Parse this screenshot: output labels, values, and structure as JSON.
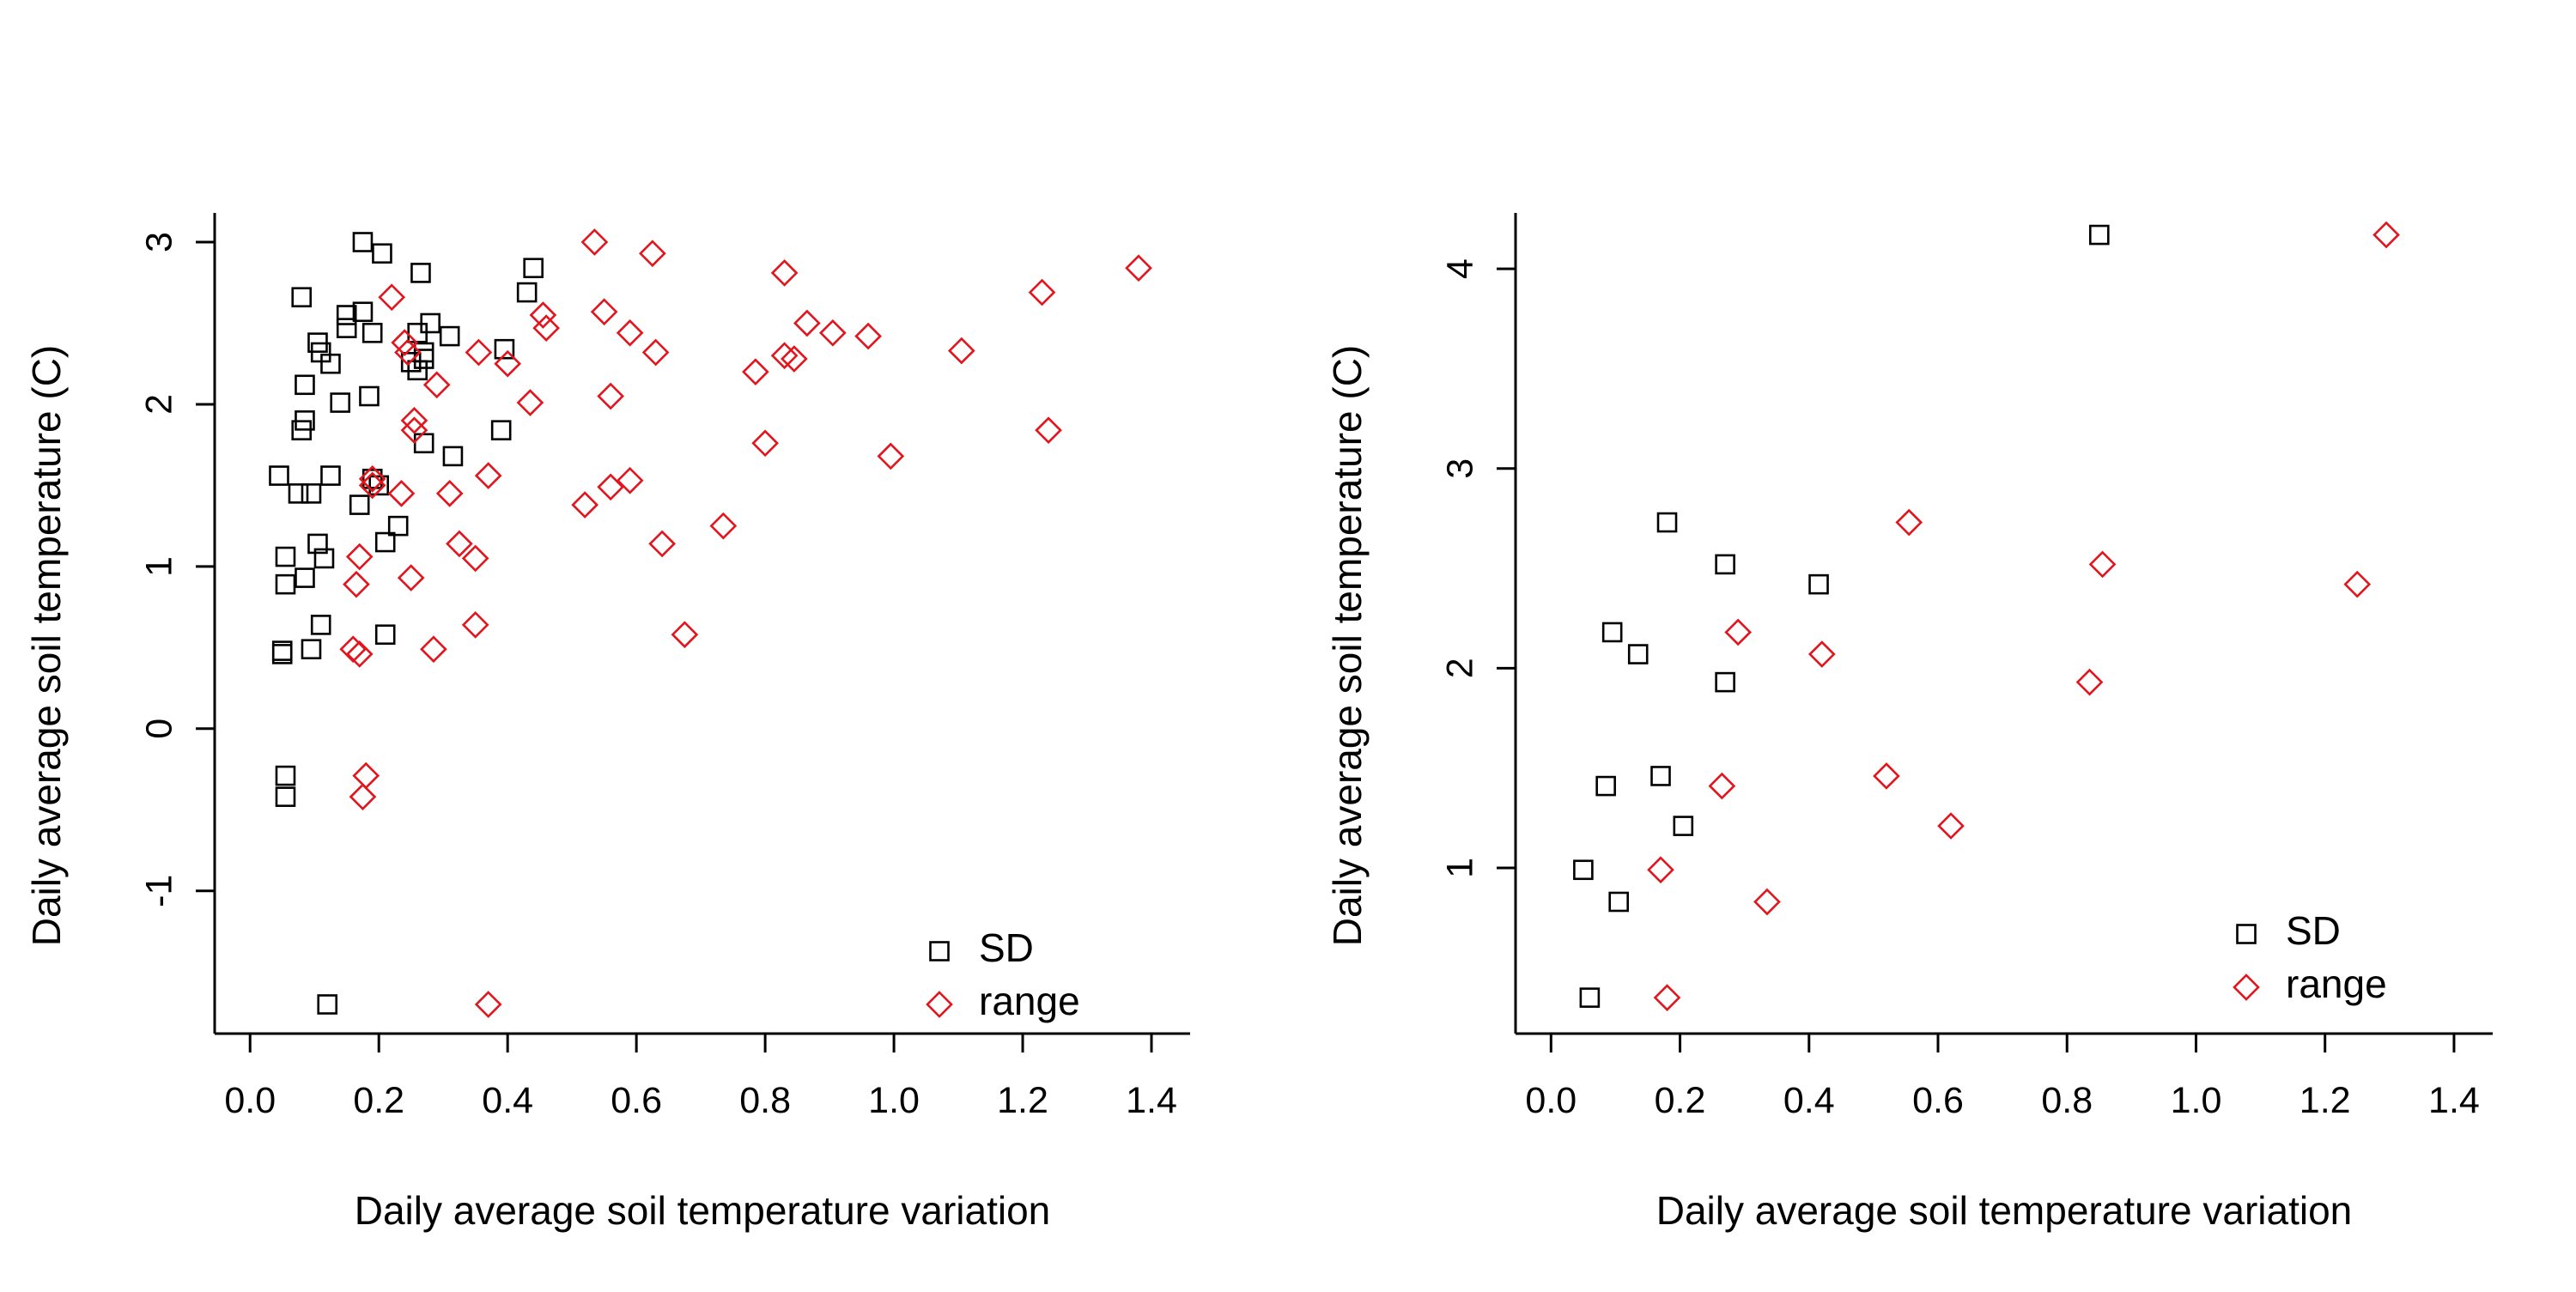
{
  "colors": {
    "sd": "#000000",
    "range": "#e3141c",
    "axis": "#000000"
  },
  "chart_data": [
    {
      "type": "scatter",
      "xlabel": "Daily average soil temperature variation",
      "ylabel": "Daily average soil temperature (C)",
      "xlim": [
        -0.055,
        1.46
      ],
      "ylim": [
        -1.88,
        3.18
      ],
      "xticks": [
        0.0,
        0.2,
        0.4,
        0.6,
        0.8,
        1.0,
        1.2,
        1.4
      ],
      "xtick_labels": [
        "0.0",
        "0.2",
        "0.4",
        "0.6",
        "0.8",
        "1.0",
        "1.2",
        "1.4"
      ],
      "yticks": [
        -1,
        0,
        1,
        2,
        3
      ],
      "ytick_labels": [
        "-1",
        "0",
        "1",
        "2",
        "3"
      ],
      "grid": false,
      "legend": {
        "position": "bottom-right",
        "entries": [
          "SD",
          "range"
        ]
      },
      "series": [
        {
          "name": "SD",
          "marker": "square",
          "x": [
            0.175,
            0.205,
            0.265,
            0.44,
            0.08,
            0.43,
            0.15,
            0.175,
            0.28,
            0.15,
            0.19,
            0.26,
            0.31,
            0.105,
            0.11,
            0.27,
            0.27,
            0.25,
            0.125,
            0.26,
            0.085,
            0.185,
            0.395,
            0.14,
            0.085,
            0.39,
            0.08,
            0.27,
            0.315,
            0.045,
            0.19,
            0.2,
            0.125,
            0.075,
            0.095,
            0.17,
            0.23,
            0.105,
            0.21,
            0.115,
            0.055,
            0.085,
            0.055,
            0.11,
            0.21,
            0.095,
            0.05,
            0.05,
            0.055,
            0.055,
            0.12
          ],
          "y": [
            3.0,
            2.93,
            2.81,
            2.84,
            2.66,
            2.69,
            2.55,
            2.57,
            2.5,
            2.47,
            2.44,
            2.44,
            2.42,
            2.38,
            2.32,
            2.32,
            2.28,
            2.26,
            2.25,
            2.21,
            2.12,
            2.05,
            2.34,
            2.01,
            1.9,
            1.84,
            1.84,
            1.76,
            1.68,
            1.56,
            1.54,
            1.5,
            1.56,
            1.45,
            1.45,
            1.38,
            1.25,
            1.14,
            1.15,
            1.05,
            1.06,
            0.93,
            0.89,
            0.64,
            0.58,
            0.49,
            0.48,
            0.46,
            -0.29,
            -0.42,
            -1.7
          ]
        },
        {
          "name": "range",
          "marker": "diamond",
          "x": [
            0.535,
            0.625,
            0.83,
            1.38,
            0.22,
            1.23,
            0.455,
            0.55,
            0.865,
            0.46,
            0.59,
            0.905,
            0.96,
            0.24,
            0.245,
            0.355,
            0.63,
            0.83,
            0.845,
            1.105,
            0.785,
            0.29,
            0.4,
            0.435,
            0.56,
            0.255,
            0.255,
            0.8,
            1.24,
            0.37,
            0.19,
            0.19,
            0.56,
            0.59,
            0.31,
            0.235,
            0.52,
            0.735,
            0.325,
            0.64,
            0.35,
            0.17,
            0.25,
            0.165,
            0.995,
            0.35,
            0.675,
            0.285,
            0.16,
            0.17,
            0.18,
            0.175,
            0.37
          ],
          "y": [
            3.0,
            2.93,
            2.81,
            2.84,
            2.66,
            2.69,
            2.55,
            2.57,
            2.5,
            2.47,
            2.44,
            2.44,
            2.42,
            2.38,
            2.32,
            2.32,
            2.32,
            2.3,
            2.28,
            2.33,
            2.2,
            2.12,
            2.25,
            2.01,
            2.05,
            1.9,
            1.84,
            1.76,
            1.84,
            1.56,
            1.54,
            1.5,
            1.49,
            1.53,
            1.45,
            1.45,
            1.38,
            1.25,
            1.14,
            1.14,
            1.05,
            1.06,
            0.93,
            0.89,
            1.68,
            0.64,
            0.58,
            0.49,
            0.49,
            0.46,
            -0.29,
            -0.42,
            -1.7
          ]
        }
      ]
    },
    {
      "type": "scatter",
      "xlabel": "Daily average soil temperature variation",
      "ylabel": "Daily average soil temperature (C)",
      "xlim": [
        -0.055,
        1.46
      ],
      "ylim": [
        0.17,
        4.28
      ],
      "xticks": [
        0.0,
        0.2,
        0.4,
        0.6,
        0.8,
        1.0,
        1.2,
        1.4
      ],
      "xtick_labels": [
        "0.0",
        "0.2",
        "0.4",
        "0.6",
        "0.8",
        "1.0",
        "1.2",
        "1.4"
      ],
      "yticks": [
        1,
        2,
        3,
        4
      ],
      "ytick_labels": [
        "1",
        "2",
        "3",
        "4"
      ],
      "grid": false,
      "legend": {
        "position": "bottom-right",
        "entries": [
          "SD",
          "range"
        ]
      },
      "series": [
        {
          "name": "SD",
          "marker": "square",
          "x": [
            0.85,
            0.18,
            0.27,
            0.415,
            0.095,
            0.135,
            0.27,
            0.17,
            0.085,
            0.205,
            0.05,
            0.105,
            0.06
          ],
          "y": [
            4.17,
            2.73,
            2.52,
            2.42,
            2.18,
            2.07,
            1.93,
            1.46,
            1.41,
            1.21,
            0.99,
            0.83,
            0.35
          ]
        },
        {
          "name": "range",
          "marker": "diamond",
          "x": [
            1.295,
            0.555,
            0.855,
            1.25,
            0.29,
            0.42,
            0.835,
            0.52,
            0.265,
            0.62,
            0.17,
            0.335,
            0.18
          ],
          "y": [
            4.17,
            2.73,
            2.52,
            2.42,
            2.18,
            2.07,
            1.93,
            1.46,
            1.41,
            1.21,
            0.99,
            0.83,
            0.35
          ]
        }
      ]
    }
  ]
}
